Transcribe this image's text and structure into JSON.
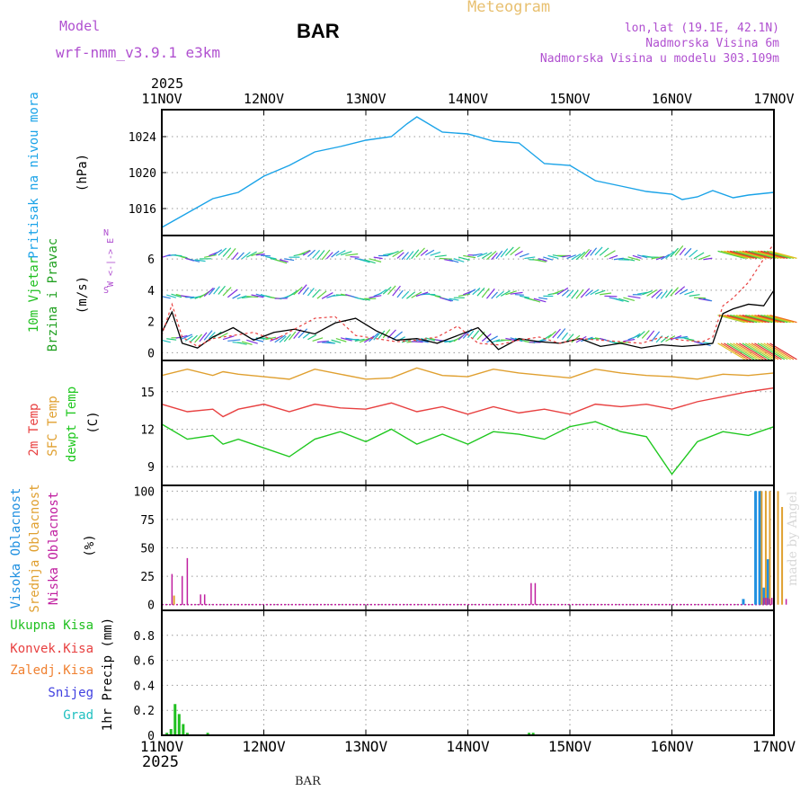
{
  "header": {
    "model_label": "Model",
    "model_name": "wrf-nmm_v3.9.1 e3km",
    "station": "BAR",
    "meteogram_title": "Meteogram",
    "lonlat": "lon,lat (19.1E, 42.1N)",
    "elevation": "Nadmorska Visina 6m",
    "model_elevation": "Nadmorska Visina u modelu 303.109m",
    "year_top": "2025",
    "year_bottom": "2025",
    "footer_station": "BAR",
    "credit": "made by Angel"
  },
  "colors": {
    "pressure": "#1aa3e8",
    "wind_label": "#20c020",
    "wind_speed_label": "#20a020",
    "temp2m": "#e84040",
    "sfc": "#e0a030",
    "dewpt": "#20c820",
    "cloud_high": "#2090e0",
    "cloud_mid": "#e0a030",
    "cloud_low": "#c020a0",
    "model_header": "#b050d0",
    "meteogram_header": "#e8c070",
    "rain_total": "#20c020",
    "rain_conv": "#e84040",
    "rain_frozen": "#f08030",
    "snow": "#4040e0",
    "hail": "#20c0c0"
  },
  "chart_data": [
    {
      "type": "line",
      "panel": "pressure",
      "title": "Pritisak na nivou mora",
      "ylabel": "(hPa)",
      "x_ticks": [
        "11NOV",
        "12NOV",
        "13NOV",
        "14NOV",
        "15NOV",
        "16NOV",
        "17NOV"
      ],
      "ylim": [
        1013,
        1027
      ],
      "y_ticks": [
        "1016",
        "1020",
        "1024"
      ],
      "y_tick_values": [
        1016,
        1020,
        1024
      ],
      "x": [
        0,
        0.25,
        0.5,
        0.75,
        1,
        1.25,
        1.5,
        1.75,
        2,
        2.25,
        2.4,
        2.5,
        2.75,
        3,
        3.25,
        3.5,
        3.75,
        4,
        4.25,
        4.5,
        4.75,
        5,
        5.1,
        5.25,
        5.4,
        5.6,
        5.75,
        6
      ],
      "values": [
        1013.9,
        1015.5,
        1017.1,
        1017.8,
        1019.6,
        1020.8,
        1022.3,
        1022.9,
        1023.6,
        1024.0,
        1025.4,
        1026.2,
        1024.5,
        1024.3,
        1023.5,
        1023.3,
        1021.0,
        1020.8,
        1019.1,
        1018.5,
        1017.9,
        1017.6,
        1017.0,
        1017.3,
        1018.0,
        1017.2,
        1017.5,
        1017.8
      ]
    },
    {
      "type": "line",
      "panel": "wind",
      "title": "10m Vjetar",
      "title2": "Brzina i Pravac",
      "ylabel": "(m/s)",
      "compass": [
        "N",
        "W <-|-> E",
        "S"
      ],
      "ylim": [
        -0.5,
        7.5
      ],
      "y_ticks": [
        "0",
        "2",
        "4",
        "6"
      ],
      "y_tick_values": [
        0,
        2,
        4,
        6
      ],
      "speed_x": [
        0,
        0.1,
        0.2,
        0.35,
        0.5,
        0.7,
        0.9,
        1.1,
        1.3,
        1.5,
        1.7,
        1.9,
        2.1,
        2.3,
        2.5,
        2.7,
        2.9,
        3.1,
        3.3,
        3.5,
        3.7,
        3.9,
        4.1,
        4.3,
        4.5,
        4.7,
        4.9,
        5.1,
        5.3,
        5.4,
        5.5,
        5.6,
        5.75,
        5.9,
        6
      ],
      "speed_values": [
        1.3,
        2.6,
        0.6,
        0.3,
        1.0,
        1.6,
        0.8,
        1.3,
        1.5,
        1.2,
        1.9,
        2.2,
        1.4,
        0.8,
        0.9,
        0.6,
        1.1,
        1.6,
        0.2,
        0.9,
        0.7,
        0.6,
        0.9,
        0.4,
        0.6,
        0.3,
        0.5,
        0.4,
        0.5,
        0.6,
        2.5,
        2.8,
        3.1,
        3.0,
        4.0
      ],
      "max_x": [
        0,
        0.1,
        0.2,
        0.35,
        0.5,
        0.7,
        0.9,
        1.1,
        1.3,
        1.5,
        1.7,
        1.9,
        2.1,
        2.3,
        2.5,
        2.7,
        2.9,
        3.1,
        3.3,
        3.5,
        3.7,
        3.9,
        4.1,
        4.3,
        4.5,
        4.7,
        4.9,
        5.1,
        5.3,
        5.4,
        5.5,
        5.6,
        5.75,
        5.9,
        6
      ],
      "max_values": [
        1.1,
        3.1,
        1.0,
        0.4,
        0.9,
        1.1,
        1.3,
        0.8,
        1.5,
        2.2,
        2.3,
        1.1,
        0.9,
        0.7,
        0.8,
        1.0,
        1.7,
        0.6,
        0.5,
        0.8,
        1.0,
        0.6,
        0.9,
        0.8,
        0.7,
        0.6,
        1.0,
        0.8,
        0.7,
        1.0,
        3.0,
        3.5,
        4.5,
        6.0,
        7.0
      ]
    },
    {
      "type": "line",
      "panel": "temperature",
      "labels": [
        "2m Temp",
        "SFC Temp",
        "dewpt Temp"
      ],
      "ylabel": "(C)",
      "ylim": [
        7.5,
        17.5
      ],
      "y_ticks": [
        "9",
        "12",
        "15"
      ],
      "y_tick_values": [
        9,
        12,
        15
      ],
      "x": [
        0,
        0.25,
        0.5,
        0.6,
        0.75,
        1,
        1.25,
        1.5,
        1.75,
        2,
        2.25,
        2.5,
        2.75,
        3,
        3.25,
        3.5,
        3.75,
        4,
        4.25,
        4.5,
        4.75,
        5,
        5.25,
        5.5,
        5.75,
        6
      ],
      "sfc": [
        16.3,
        16.8,
        16.3,
        16.6,
        16.4,
        16.2,
        16.0,
        16.8,
        16.4,
        16.0,
        16.1,
        16.9,
        16.3,
        16.2,
        16.8,
        16.5,
        16.3,
        16.1,
        16.8,
        16.5,
        16.3,
        16.2,
        16.0,
        16.4,
        16.3,
        16.5
      ],
      "temp2m": [
        14.0,
        13.4,
        13.6,
        13.0,
        13.6,
        14.0,
        13.4,
        14.0,
        13.7,
        13.6,
        14.1,
        13.4,
        13.8,
        13.2,
        13.8,
        13.3,
        13.6,
        13.2,
        14.0,
        13.8,
        14.0,
        13.6,
        14.2,
        14.6,
        15.0,
        15.3
      ],
      "dewpt": [
        12.4,
        11.2,
        11.5,
        10.8,
        11.2,
        10.5,
        9.8,
        11.2,
        11.8,
        11.0,
        12.0,
        10.8,
        11.6,
        10.8,
        11.8,
        11.6,
        11.2,
        12.2,
        12.6,
        11.8,
        11.4,
        8.4,
        11.0,
        11.8,
        11.5,
        12.2
      ]
    },
    {
      "type": "bar",
      "panel": "clouds",
      "labels": [
        "Visoka Oblacnost",
        "Srednja Oblacnost",
        "Niska Oblacnost"
      ],
      "ylabel": "(%)",
      "ylim": [
        -5,
        105
      ],
      "y_ticks": [
        "0",
        "25",
        "50",
        "75",
        "100"
      ],
      "y_tick_values": [
        0,
        25,
        50,
        75,
        100
      ],
      "high": [
        {
          "x": 5.82,
          "v": 100
        },
        {
          "x": 5.86,
          "v": 100
        },
        {
          "x": 5.9,
          "v": 15
        },
        {
          "x": 5.94,
          "v": 40
        },
        {
          "x": 5.7,
          "v": 5
        }
      ],
      "mid": [
        {
          "x": 0.12,
          "v": 8
        },
        {
          "x": 5.88,
          "v": 100
        },
        {
          "x": 5.92,
          "v": 100
        },
        {
          "x": 5.96,
          "v": 100
        },
        {
          "x": 6.0,
          "v": 100
        },
        {
          "x": 6.04,
          "v": 100
        },
        {
          "x": 6.08,
          "v": 86
        }
      ],
      "low": [
        {
          "x": 0.1,
          "v": 27
        },
        {
          "x": 0.2,
          "v": 25
        },
        {
          "x": 0.25,
          "v": 41
        },
        {
          "x": 0.38,
          "v": 9
        },
        {
          "x": 0.42,
          "v": 9
        },
        {
          "x": 3.62,
          "v": 19
        },
        {
          "x": 3.66,
          "v": 19
        },
        {
          "x": 5.9,
          "v": 6
        },
        {
          "x": 6.12,
          "v": 5
        },
        {
          "x": 5.92,
          "v": 6
        },
        {
          "x": 5.94,
          "v": 6
        },
        {
          "x": 5.96,
          "v": 5
        },
        {
          "x": 5.98,
          "v": 6
        }
      ],
      "baseline": 0.6
    },
    {
      "type": "bar",
      "panel": "precip",
      "labels": [
        "Ukupna Kisa",
        "Konvek.Kisa",
        "Zaledj.Kisa",
        "Snijeg",
        "Grad"
      ],
      "ylabel": "1hr Precip (mm)",
      "ylim": [
        0,
        1.0
      ],
      "y_ticks": [
        "0",
        "0.2",
        "0.4",
        "0.6",
        "0.8"
      ],
      "y_tick_values": [
        0,
        0.2,
        0.4,
        0.6,
        0.8
      ],
      "x_ticks": [
        "11NOV",
        "12NOV",
        "13NOV",
        "14NOV",
        "15NOV",
        "16NOV",
        "17NOV"
      ],
      "total": [
        {
          "x": 0.05,
          "v": 0.02
        },
        {
          "x": 0.09,
          "v": 0.05
        },
        {
          "x": 0.13,
          "v": 0.25
        },
        {
          "x": 0.17,
          "v": 0.17
        },
        {
          "x": 0.21,
          "v": 0.09
        },
        {
          "x": 0.25,
          "v": 0.02
        },
        {
          "x": 0.45,
          "v": 0.02
        },
        {
          "x": 3.6,
          "v": 0.02
        },
        {
          "x": 3.64,
          "v": 0.02
        }
      ]
    }
  ]
}
